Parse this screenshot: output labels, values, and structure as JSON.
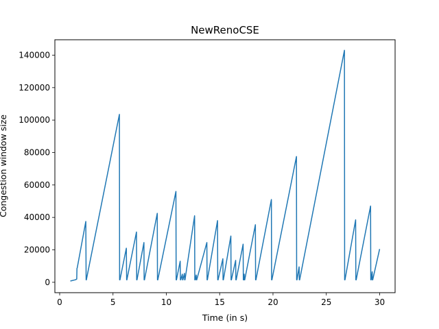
{
  "chart_data": {
    "type": "line",
    "title": "NewRenoCSE",
    "xlabel": "Time (in s)",
    "ylabel": "Congestion window size",
    "xlim": [
      -0.45,
      31.45
    ],
    "ylim": [
      -6400,
      149500
    ],
    "xticks": [
      0,
      5,
      10,
      15,
      20,
      25,
      30
    ],
    "yticks": [
      0,
      20000,
      40000,
      60000,
      80000,
      100000,
      120000,
      140000
    ],
    "xtick_labels": [
      "0",
      "5",
      "10",
      "15",
      "20",
      "25",
      "30"
    ],
    "ytick_labels": [
      "0",
      "20000",
      "40000",
      "60000",
      "80000",
      "100000",
      "120000",
      "140000"
    ],
    "grid": false,
    "line_color": "#1f77b4",
    "series": [
      {
        "x": [
          1.0,
          1.5,
          1.6,
          1.62,
          1.65,
          2.45,
          2.48,
          2.5,
          5.6,
          5.62,
          5.65,
          6.25,
          6.28,
          6.3,
          7.2,
          7.22,
          7.25,
          7.9,
          7.92,
          7.95,
          9.15,
          9.17,
          9.2,
          10.9,
          10.92,
          10.95,
          11.3,
          11.32,
          11.35,
          11.5,
          11.52,
          11.55,
          11.7,
          11.72,
          11.75,
          12.65,
          12.67,
          12.7,
          12.8,
          12.82,
          12.85,
          13.8,
          13.82,
          13.85,
          14.8,
          14.82,
          14.85,
          15.3,
          15.32,
          15.35,
          16.05,
          16.07,
          16.1,
          16.5,
          16.52,
          16.55,
          17.2,
          17.22,
          17.25,
          17.3,
          17.32,
          17.35,
          18.35,
          18.37,
          18.4,
          19.85,
          19.87,
          19.9,
          22.2,
          22.22,
          22.25,
          22.45,
          22.47,
          22.5,
          26.7,
          26.72,
          26.75,
          27.75,
          27.77,
          27.8,
          29.15,
          29.17,
          29.2,
          29.3,
          29.32,
          29.35,
          30.0
        ],
        "y": [
          800,
          1600,
          2000,
          8500,
          9000,
          37500,
          1500,
          1500,
          103500,
          1500,
          1500,
          21000,
          1500,
          1500,
          31000,
          1500,
          1500,
          24500,
          1500,
          1500,
          42500,
          1500,
          1500,
          56000,
          1500,
          1500,
          13000,
          1500,
          1500,
          5000,
          1500,
          1500,
          5500,
          1500,
          1500,
          41000,
          1500,
          1500,
          4500,
          1500,
          1500,
          24500,
          1500,
          1500,
          38000,
          1500,
          1500,
          14500,
          1500,
          1500,
          28500,
          1500,
          1500,
          13500,
          1500,
          1500,
          23500,
          1500,
          1500,
          5000,
          1500,
          1500,
          35500,
          1500,
          1500,
          51000,
          1500,
          1500,
          77500,
          1500,
          1500,
          9500,
          1500,
          1500,
          143000,
          1500,
          1500,
          38500,
          1500,
          1500,
          47000,
          1500,
          1500,
          6500,
          1500,
          1500,
          20500
        ]
      }
    ]
  }
}
